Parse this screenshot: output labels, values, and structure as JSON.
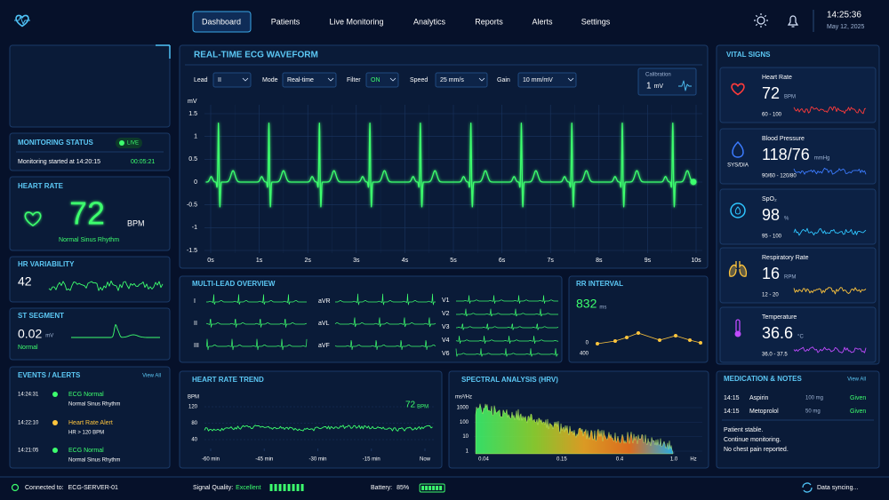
{
  "header": {
    "nav": [
      "Dashboard",
      "Patients",
      "Live Monitoring",
      "Analytics",
      "Reports",
      "Alerts",
      "Settings"
    ],
    "time": "14:25:36",
    "date": "May 12, 2025"
  },
  "monitoring_status": {
    "title": "MONITORING STATUS",
    "badge": "LIVE",
    "started": "Monitoring started at 14:20:15",
    "elapsed": "00:05:21"
  },
  "heart_rate": {
    "title": "HEART RATE",
    "value": 72,
    "unit": "BPM",
    "rhythm": "Normal Sinus Rhythm"
  },
  "hr_variability": {
    "title": "HR VARIABILITY",
    "value": 42
  },
  "st_segment": {
    "title": "ST SEGMENT",
    "value": 0.02,
    "unit": "mV",
    "status": "Normal"
  },
  "events": {
    "title": "EVENTS / ALERTS",
    "view_all": "View All",
    "items": [
      {
        "time": "14:24:31",
        "title": "ECG Normal",
        "detail": "Normal Sinus Rhythm",
        "color": "#3dff6e"
      },
      {
        "time": "14:22:10",
        "title": "Heart Rate Alert",
        "detail": "HR > 120 BPM",
        "color": "#ffc53d"
      },
      {
        "time": "14:21:05",
        "title": "ECG Normal",
        "detail": "Normal Sinus Rhythm",
        "color": "#3dff6e"
      }
    ]
  },
  "ecg": {
    "title": "REAL-TIME ECG WAVEFORM",
    "controls": [
      {
        "label": "Lead",
        "value": "II"
      },
      {
        "label": "Mode",
        "value": "Real-time"
      },
      {
        "label": "Filter",
        "value": "ON",
        "color": "#3dff6e"
      },
      {
        "label": "Speed",
        "value": "25 mm/s"
      },
      {
        "label": "Gain",
        "value": "10 mm/mV"
      }
    ],
    "calibration": {
      "label": "Calibration",
      "value": 1,
      "unit": "mV"
    },
    "y_label": "mV",
    "ylim": [
      -1.5,
      1.5
    ],
    "yticks": [
      1.5,
      1,
      0.5,
      0,
      -0.5,
      -1,
      -1.5
    ],
    "xlim": [
      0,
      10
    ],
    "xticks": [
      {
        "value": 0,
        "label": "0s"
      },
      {
        "value": 1,
        "label": "1s"
      },
      {
        "value": 2,
        "label": "2s"
      },
      {
        "value": 3,
        "label": "3s"
      },
      {
        "value": 4,
        "label": "4s"
      },
      {
        "value": 5,
        "label": "5s"
      },
      {
        "value": 6,
        "label": "6s"
      },
      {
        "value": 7,
        "label": "7s"
      },
      {
        "value": 8,
        "label": "8s"
      },
      {
        "value": 9,
        "label": "9s"
      },
      {
        "value": 10,
        "label": "10s"
      }
    ],
    "color": "#3dff6e",
    "grid": true
  },
  "multi_lead": {
    "title": "MULTI-LEAD OVERVIEW",
    "leads": [
      "I",
      "II",
      "III",
      "aVR",
      "aVL",
      "aVF",
      "V1",
      "V2",
      "V3",
      "V4",
      "V6"
    ]
  },
  "rr_interval": {
    "title": "RR INTERVAL",
    "value": 832,
    "unit": "ms",
    "axis_labels": [
      0,
      400
    ]
  },
  "hr_trend": {
    "title": "HEART RATE TREND",
    "y_label": "BPM",
    "ylim": [
      40,
      120
    ],
    "yticks": [
      120,
      80,
      40
    ],
    "xlim": [
      -60,
      0
    ],
    "xticks": [
      {
        "value": -60,
        "label": "-60 min"
      },
      {
        "value": -45,
        "label": "-45 min"
      },
      {
        "value": -30,
        "label": "-30 min"
      },
      {
        "value": -15,
        "label": "-15 min"
      },
      {
        "value": 0,
        "label": "Now"
      }
    ],
    "current": 72,
    "current_unit": "BPM",
    "color": "#3dff6e"
  },
  "spectral": {
    "title": "SPECTRAL ANALYSIS (HRV)",
    "y_label": "ms²/Hz",
    "ylog": true,
    "xlog": true,
    "ylim": [
      1,
      1000
    ],
    "yticks": [
      1000,
      100,
      10,
      1
    ],
    "xlim": [
      0.04,
      1
    ],
    "xticks": [
      0.04,
      0.15,
      0.4,
      {
        "value": 1,
        "label": "1.0"
      }
    ],
    "x_unit": "Hz"
  },
  "vital_signs": {
    "title": "VITAL SIGNS",
    "items": [
      {
        "label": "Heart Rate",
        "value": 72,
        "unit": "BPM",
        "range": "60 - 100",
        "color": "#ff3b3b"
      },
      {
        "label": "Blood Pressure",
        "value": "118/76",
        "unit": "mmHg",
        "sublabel": "SYS/DIA",
        "range": "90/60 - 120/80",
        "color": "#3b7bff"
      },
      {
        "label": "SpO₂",
        "value": 98,
        "unit": "%",
        "range": "95 - 100",
        "color": "#2ec5ff"
      },
      {
        "label": "Respiratory Rate",
        "value": 16,
        "unit": "RPM",
        "range": "12 - 20",
        "color": "#ffc53d"
      },
      {
        "label": "Temperature",
        "value": 36.6,
        "unit": "°C",
        "range": "36.0 - 37.5",
        "color": "#c04bff"
      }
    ]
  },
  "medication": {
    "title": "MEDICATION & NOTES",
    "view_all": "View All",
    "items": [
      {
        "time": "14:15",
        "drug": "Aspirin",
        "dose": "100 mg",
        "status": "Given"
      },
      {
        "time": "14:15",
        "drug": "Metoprolol",
        "dose": "50 mg",
        "status": "Given"
      }
    ],
    "notes": [
      "Patient stable.",
      "Continue monitoring.",
      "No chest pain reported."
    ]
  },
  "footer": {
    "connected_label": "Connected to:",
    "server": "ECG-SERVER-01",
    "signal_label": "Signal Quality:",
    "signal": "Excellent",
    "battery_label": "Battery:",
    "battery": "85%",
    "sync": "Data syncing..."
  }
}
